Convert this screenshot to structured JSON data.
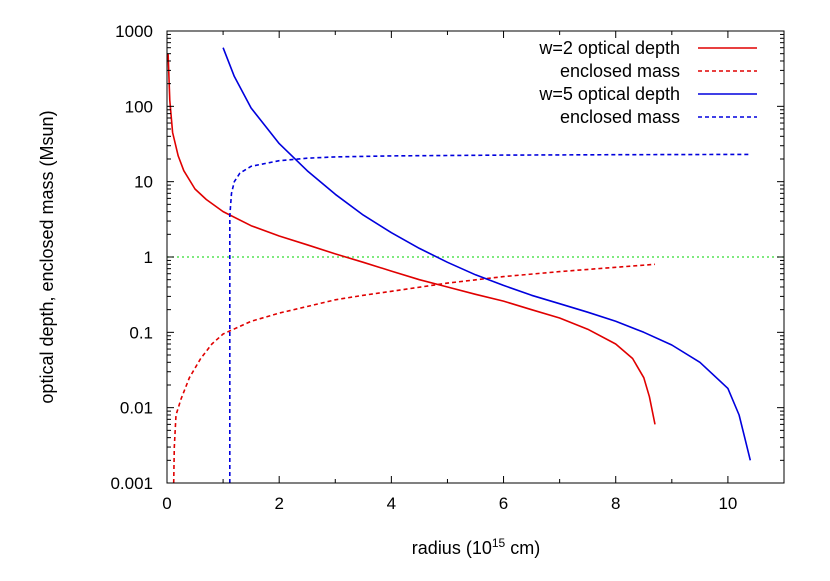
{
  "chart_data": {
    "type": "line",
    "xlabel_prefix": "radius (10",
    "xlabel_exponent": "15",
    "xlabel_suffix": " cm)",
    "ylabel": "optical depth, enclosed mass (Msun)",
    "x_scale": "linear",
    "y_scale": "log",
    "xlim": [
      0,
      11
    ],
    "ylim": [
      0.001,
      1000
    ],
    "x_ticks": [
      "0",
      "2",
      "4",
      "6",
      "8",
      "10"
    ],
    "y_ticks": [
      "0.001",
      "0.01",
      "0.1",
      "1",
      "10",
      "100",
      "1000"
    ],
    "grid": false,
    "legend_position": "top-right",
    "reference_line": {
      "y": 1,
      "color": "#33dd33",
      "style": "dotted"
    },
    "series": [
      {
        "name": "w=2 optical depth",
        "color": "#e00000",
        "dash": "solid",
        "points": [
          [
            0.02,
            500
          ],
          [
            0.05,
            120
          ],
          [
            0.1,
            45
          ],
          [
            0.2,
            22
          ],
          [
            0.3,
            14
          ],
          [
            0.5,
            8
          ],
          [
            0.7,
            5.8
          ],
          [
            1.0,
            4
          ],
          [
            1.5,
            2.6
          ],
          [
            2.0,
            1.9
          ],
          [
            2.5,
            1.45
          ],
          [
            3.0,
            1.1
          ],
          [
            3.5,
            0.85
          ],
          [
            4.0,
            0.65
          ],
          [
            4.5,
            0.5
          ],
          [
            5.0,
            0.4
          ],
          [
            5.5,
            0.32
          ],
          [
            6.0,
            0.26
          ],
          [
            6.5,
            0.2
          ],
          [
            7.0,
            0.155
          ],
          [
            7.5,
            0.11
          ],
          [
            8.0,
            0.07
          ],
          [
            8.3,
            0.045
          ],
          [
            8.5,
            0.025
          ],
          [
            8.6,
            0.014
          ],
          [
            8.7,
            0.006
          ]
        ]
      },
      {
        "name": "enclosed mass",
        "color": "#e00000",
        "dash": "dashed",
        "points": [
          [
            0.12,
            0.001
          ],
          [
            0.13,
            0.003
          ],
          [
            0.16,
            0.008
          ],
          [
            0.25,
            0.013
          ],
          [
            0.4,
            0.025
          ],
          [
            0.6,
            0.045
          ],
          [
            0.8,
            0.07
          ],
          [
            1.0,
            0.095
          ],
          [
            1.5,
            0.14
          ],
          [
            2.0,
            0.18
          ],
          [
            2.5,
            0.22
          ],
          [
            3.0,
            0.27
          ],
          [
            3.5,
            0.31
          ],
          [
            4.0,
            0.35
          ],
          [
            5.0,
            0.45
          ],
          [
            6.0,
            0.55
          ],
          [
            7.0,
            0.64
          ],
          [
            8.0,
            0.73
          ],
          [
            8.7,
            0.8
          ]
        ]
      },
      {
        "name": "w=5 optical depth",
        "color": "#0000dd",
        "dash": "solid",
        "points": [
          [
            1.0,
            600
          ],
          [
            1.2,
            250
          ],
          [
            1.5,
            95
          ],
          [
            2.0,
            32
          ],
          [
            2.5,
            14
          ],
          [
            3.0,
            6.8
          ],
          [
            3.5,
            3.6
          ],
          [
            4.0,
            2.1
          ],
          [
            4.5,
            1.3
          ],
          [
            5.0,
            0.85
          ],
          [
            5.5,
            0.58
          ],
          [
            6.0,
            0.42
          ],
          [
            6.5,
            0.31
          ],
          [
            7.0,
            0.24
          ],
          [
            7.5,
            0.185
          ],
          [
            8.0,
            0.14
          ],
          [
            8.5,
            0.1
          ],
          [
            9.0,
            0.068
          ],
          [
            9.5,
            0.04
          ],
          [
            10.0,
            0.018
          ],
          [
            10.2,
            0.008
          ],
          [
            10.3,
            0.004
          ],
          [
            10.4,
            0.002
          ]
        ]
      },
      {
        "name": "enclosed mass",
        "color": "#0000dd",
        "dash": "dashed",
        "points": [
          [
            1.12,
            0.001
          ],
          [
            1.12,
            3.5
          ],
          [
            1.15,
            7
          ],
          [
            1.2,
            10
          ],
          [
            1.3,
            13
          ],
          [
            1.5,
            16
          ],
          [
            2.0,
            19
          ],
          [
            2.5,
            20.5
          ],
          [
            3.0,
            21.3
          ],
          [
            4.0,
            22
          ],
          [
            6.0,
            22.5
          ],
          [
            8.0,
            22.8
          ],
          [
            10.4,
            23
          ]
        ]
      }
    ]
  }
}
